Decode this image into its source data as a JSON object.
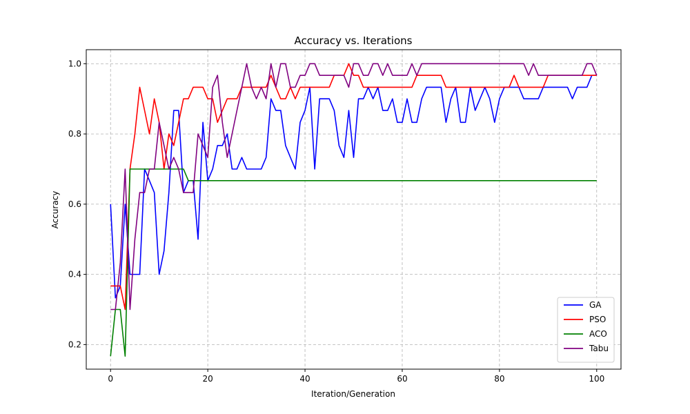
{
  "chart_data": {
    "type": "line",
    "title": "Accuracy vs. Iterations",
    "xlabel": "Iteration/Generation",
    "ylabel": "Accuracy",
    "xlim": [
      -5,
      105
    ],
    "ylim": [
      0.13,
      1.04
    ],
    "xticks": [
      0,
      20,
      40,
      60,
      80,
      100
    ],
    "yticks": [
      0.2,
      0.4,
      0.6,
      0.8,
      1.0
    ],
    "grid": true,
    "legend_position": "lower-right",
    "x": [
      0,
      1,
      2,
      3,
      4,
      5,
      6,
      7,
      8,
      9,
      10,
      11,
      12,
      13,
      14,
      15,
      16,
      17,
      18,
      19,
      20,
      21,
      22,
      23,
      24,
      25,
      26,
      27,
      28,
      29,
      30,
      31,
      32,
      33,
      34,
      35,
      36,
      37,
      38,
      39,
      40,
      41,
      42,
      43,
      44,
      45,
      46,
      47,
      48,
      49,
      50,
      51,
      52,
      53,
      54,
      55,
      56,
      57,
      58,
      59,
      60,
      61,
      62,
      63,
      64,
      65,
      66,
      67,
      68,
      69,
      70,
      71,
      72,
      73,
      74,
      75,
      76,
      77,
      78,
      79,
      80,
      81,
      82,
      83,
      84,
      85,
      86,
      87,
      88,
      89,
      90,
      91,
      92,
      93,
      94,
      95,
      96,
      97,
      98,
      99,
      100
    ],
    "series": [
      {
        "name": "GA",
        "color": "#0000ff",
        "values": [
          0.6,
          0.333,
          0.367,
          0.6,
          0.4,
          0.4,
          0.4,
          0.7,
          0.667,
          0.633,
          0.4,
          0.467,
          0.633,
          0.867,
          0.867,
          0.633,
          0.667,
          0.667,
          0.5,
          0.833,
          0.667,
          0.7,
          0.767,
          0.767,
          0.8,
          0.7,
          0.7,
          0.733,
          0.7,
          0.7,
          0.7,
          0.7,
          0.733,
          0.9,
          0.867,
          0.867,
          0.767,
          0.733,
          0.7,
          0.833,
          0.867,
          0.933,
          0.7,
          0.9,
          0.9,
          0.9,
          0.867,
          0.767,
          0.733,
          0.867,
          0.733,
          0.9,
          0.9,
          0.933,
          0.9,
          0.933,
          0.867,
          0.867,
          0.9,
          0.833,
          0.833,
          0.9,
          0.833,
          0.833,
          0.9,
          0.933,
          0.933,
          0.933,
          0.933,
          0.833,
          0.9,
          0.933,
          0.833,
          0.833,
          0.933,
          0.867,
          0.9,
          0.933,
          0.9,
          0.833,
          0.9,
          0.933,
          0.933,
          0.933,
          0.933,
          0.9,
          0.9,
          0.9,
          0.9,
          0.933,
          0.933,
          0.933,
          0.933,
          0.933,
          0.933,
          0.9,
          0.933,
          0.933,
          0.933,
          0.967,
          0.967
        ]
      },
      {
        "name": "PSO",
        "color": "#ff0000",
        "values": [
          0.367,
          0.367,
          0.367,
          0.3,
          0.7,
          0.8,
          0.933,
          0.867,
          0.8,
          0.9,
          0.833,
          0.7,
          0.8,
          0.767,
          0.833,
          0.9,
          0.9,
          0.933,
          0.933,
          0.933,
          0.9,
          0.9,
          0.833,
          0.867,
          0.9,
          0.9,
          0.9,
          0.933,
          0.933,
          0.933,
          0.933,
          0.933,
          0.933,
          0.967,
          0.933,
          0.9,
          0.9,
          0.933,
          0.9,
          0.933,
          0.933,
          0.933,
          0.933,
          0.933,
          0.933,
          0.933,
          0.967,
          0.967,
          0.967,
          1.0,
          0.967,
          0.967,
          0.933,
          0.933,
          0.933,
          0.933,
          0.933,
          0.933,
          0.933,
          0.933,
          0.933,
          0.933,
          0.933,
          0.967,
          0.967,
          0.967,
          0.967,
          0.967,
          0.967,
          0.933,
          0.933,
          0.933,
          0.933,
          0.933,
          0.933,
          0.933,
          0.933,
          0.933,
          0.933,
          0.933,
          0.933,
          0.933,
          0.933,
          0.967,
          0.933,
          0.933,
          0.933,
          0.933,
          0.933,
          0.933,
          0.967,
          0.967,
          0.967,
          0.967,
          0.967,
          0.967,
          0.967,
          0.967,
          0.967,
          0.967,
          0.967
        ]
      },
      {
        "name": "ACO",
        "color": "#008000",
        "values": [
          0.167,
          0.3,
          0.3,
          0.167,
          0.7,
          0.7,
          0.7,
          0.7,
          0.7,
          0.7,
          0.7,
          0.7,
          0.7,
          0.7,
          0.7,
          0.7,
          0.667,
          0.667,
          0.667,
          0.667,
          0.667,
          0.667,
          0.667,
          0.667,
          0.667,
          0.667,
          0.667,
          0.667,
          0.667,
          0.667,
          0.667,
          0.667,
          0.667,
          0.667,
          0.667,
          0.667,
          0.667,
          0.667,
          0.667,
          0.667,
          0.667,
          0.667,
          0.667,
          0.667,
          0.667,
          0.667,
          0.667,
          0.667,
          0.667,
          0.667,
          0.667,
          0.667,
          0.667,
          0.667,
          0.667,
          0.667,
          0.667,
          0.667,
          0.667,
          0.667,
          0.667,
          0.667,
          0.667,
          0.667,
          0.667,
          0.667,
          0.667,
          0.667,
          0.667,
          0.667,
          0.667,
          0.667,
          0.667,
          0.667,
          0.667,
          0.667,
          0.667,
          0.667,
          0.667,
          0.667,
          0.667,
          0.667,
          0.667,
          0.667,
          0.667,
          0.667,
          0.667,
          0.667,
          0.667,
          0.667,
          0.667,
          0.667,
          0.667,
          0.667,
          0.667,
          0.667,
          0.667,
          0.667,
          0.667,
          0.667,
          0.667
        ]
      },
      {
        "name": "Tabu",
        "color": "#800080",
        "values": [
          0.3,
          0.3,
          0.433,
          0.7,
          0.3,
          0.5,
          0.633,
          0.633,
          0.7,
          0.7,
          0.833,
          0.767,
          0.7,
          0.733,
          0.7,
          0.633,
          0.633,
          0.633,
          0.8,
          0.767,
          0.733,
          0.933,
          0.967,
          0.833,
          0.733,
          0.8,
          0.867,
          0.933,
          1.0,
          0.933,
          0.9,
          0.933,
          0.9,
          1.0,
          0.933,
          1.0,
          1.0,
          0.933,
          0.933,
          0.967,
          0.967,
          1.0,
          1.0,
          0.967,
          0.967,
          0.967,
          0.967,
          0.967,
          0.967,
          0.933,
          1.0,
          1.0,
          0.967,
          0.967,
          1.0,
          1.0,
          0.967,
          1.0,
          0.967,
          0.967,
          0.967,
          0.967,
          1.0,
          0.967,
          1.0,
          1.0,
          1.0,
          1.0,
          1.0,
          1.0,
          1.0,
          1.0,
          1.0,
          1.0,
          1.0,
          1.0,
          1.0,
          1.0,
          1.0,
          1.0,
          1.0,
          1.0,
          1.0,
          1.0,
          1.0,
          1.0,
          0.967,
          1.0,
          0.967,
          0.967,
          0.967,
          0.967,
          0.967,
          0.967,
          0.967,
          0.967,
          0.967,
          0.967,
          1.0,
          1.0,
          0.967
        ]
      }
    ]
  }
}
